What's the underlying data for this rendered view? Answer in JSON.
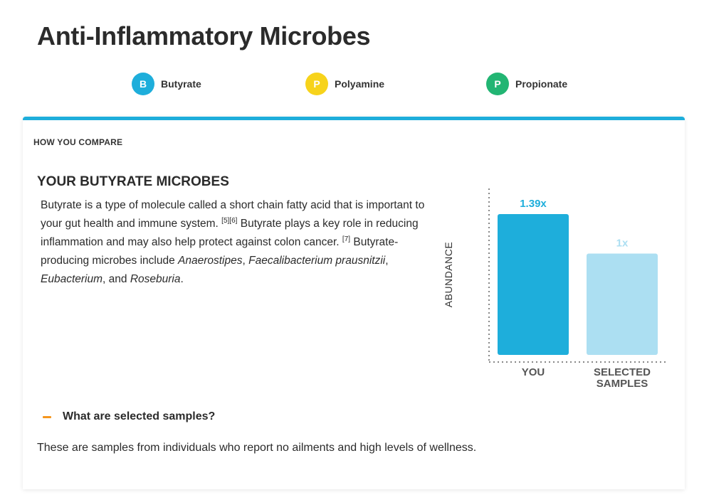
{
  "page": {
    "title": "Anti-Inflammatory Microbes"
  },
  "tabs": [
    {
      "letter": "B",
      "label": "Butyrate",
      "color": "#1eaedb"
    },
    {
      "letter": "P",
      "label": "Polyamine",
      "color": "#f7d31b"
    },
    {
      "letter": "P",
      "label": "Propionate",
      "color": "#22b573"
    }
  ],
  "card": {
    "accent_color": "#1eaedb",
    "compare_heading": "HOW YOU COMPARE",
    "section_title": "YOUR BUTYRATE MICROBES",
    "description": {
      "s1": "Butyrate is a type of molecule called a short chain fatty acid that is important to your gut health and immune system.",
      "cite1": "[5][6]",
      "s2": "Butyrate plays a key role in reducing inflammation and may also help protect against colon cancer.",
      "cite2": "[7]",
      "s3": "Butyrate-producing microbes include",
      "m1": "Anaerostipes",
      "m2": "Faecalibacterium prausnitzii",
      "m3": "Eubacterium",
      "and": "and",
      "m4": "Roseburia"
    }
  },
  "chart_data": {
    "type": "bar",
    "categories": [
      "YOU",
      "SELECTED SAMPLES"
    ],
    "values": [
      1.39,
      1.0
    ],
    "value_labels": [
      "1.39x",
      "1x"
    ],
    "colors": [
      "#1eaedb",
      "#acdff2"
    ],
    "ylabel": "ABUNDANCE",
    "ylim": [
      0,
      1.39
    ],
    "grid": false
  },
  "faq": {
    "question": "What are selected samples?",
    "answer": "These are samples from individuals who report no ailments and high levels of wellness.",
    "toggle_color": "#f5961e"
  }
}
